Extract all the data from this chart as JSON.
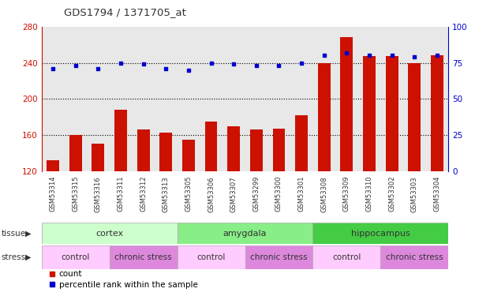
{
  "title": "GDS1794 / 1371705_at",
  "samples": [
    "GSM53314",
    "GSM53315",
    "GSM53316",
    "GSM53311",
    "GSM53312",
    "GSM53313",
    "GSM53305",
    "GSM53306",
    "GSM53307",
    "GSM53299",
    "GSM53300",
    "GSM53301",
    "GSM53308",
    "GSM53309",
    "GSM53310",
    "GSM53302",
    "GSM53303",
    "GSM53304"
  ],
  "counts": [
    132,
    160,
    150,
    188,
    166,
    163,
    155,
    175,
    170,
    166,
    167,
    182,
    240,
    268,
    247,
    247,
    240,
    248
  ],
  "percentiles": [
    71,
    73,
    71,
    75,
    74,
    71,
    70,
    75,
    74,
    73,
    73,
    75,
    80,
    82,
    80,
    80,
    79,
    80
  ],
  "ylim_left": [
    120,
    280
  ],
  "ylim_right": [
    0,
    100
  ],
  "yticks_left": [
    120,
    160,
    200,
    240,
    280
  ],
  "yticks_right": [
    0,
    25,
    50,
    75,
    100
  ],
  "bar_color": "#cc1100",
  "dot_color": "#0000cc",
  "tissue_groups": [
    {
      "label": "cortex",
      "start": 0,
      "end": 6,
      "color": "#ccffcc"
    },
    {
      "label": "amygdala",
      "start": 6,
      "end": 12,
      "color": "#88ee88"
    },
    {
      "label": "hippocampus",
      "start": 12,
      "end": 18,
      "color": "#44cc44"
    }
  ],
  "stress_groups": [
    {
      "label": "control",
      "start": 0,
      "end": 3,
      "color": "#ffccff"
    },
    {
      "label": "chronic stress",
      "start": 3,
      "end": 6,
      "color": "#dd88dd"
    },
    {
      "label": "control",
      "start": 6,
      "end": 9,
      "color": "#ffccff"
    },
    {
      "label": "chronic stress",
      "start": 9,
      "end": 12,
      "color": "#dd88dd"
    },
    {
      "label": "control",
      "start": 12,
      "end": 15,
      "color": "#ffccff"
    },
    {
      "label": "chronic stress",
      "start": 15,
      "end": 18,
      "color": "#dd88dd"
    }
  ],
  "tissue_label": "tissue",
  "stress_label": "stress",
  "legend_count": "count",
  "legend_pct": "percentile rank within the sample",
  "grid_dotted_vals": [
    160,
    200,
    240
  ],
  "background_color": "#ffffff",
  "plot_bg": "#e8e8e8"
}
